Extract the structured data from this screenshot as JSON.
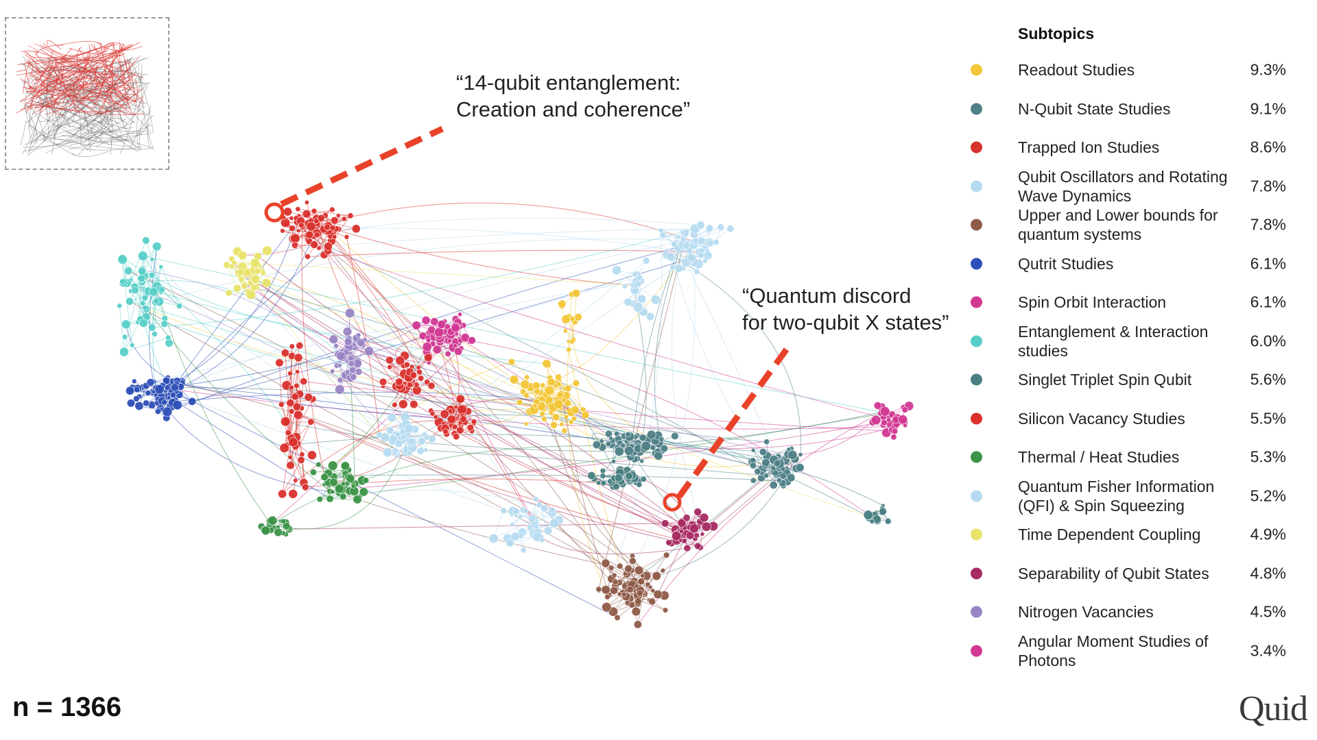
{
  "network": {
    "sample_size": "n = 1366"
  },
  "callouts": [
    {
      "line1": "“14-qubit entanglement:",
      "line2": "Creation and coherence”"
    },
    {
      "line1": "“Quantum discord",
      "line2": "for two-qubit X states”"
    }
  ],
  "legend": {
    "title": "Subtopics",
    "items": [
      {
        "label": "Readout Studies",
        "value": "9.3%",
        "color": "#f2c637"
      },
      {
        "label": "N-Qubit State Studies",
        "value": "9.1%",
        "color": "#4e8086"
      },
      {
        "label": "Trapped Ion Studies",
        "value": "8.6%",
        "color": "#d9322d"
      },
      {
        "label": "Qubit Oscillators and Rotating Wave Dynamics",
        "value": "7.8%",
        "color": "#b6dbf0"
      },
      {
        "label": "Upper and Lower bounds for quantum systems",
        "value": "7.8%",
        "color": "#8e5b48"
      },
      {
        "label": "Qutrit Studies",
        "value": "6.1%",
        "color": "#2d4fb6"
      },
      {
        "label": "Spin Orbit Interaction",
        "value": "6.1%",
        "color": "#d13892"
      },
      {
        "label": "Entanglement & Interaction studies",
        "value": "6.0%",
        "color": "#57cfc8"
      },
      {
        "label": "Singlet Triplet Spin Qubit",
        "value": "5.6%",
        "color": "#4a7f82"
      },
      {
        "label": "Silicon Vacancy Studies",
        "value": "5.5%",
        "color": "#d9322d"
      },
      {
        "label": "Thermal / Heat Studies",
        "value": "5.3%",
        "color": "#3b9447"
      },
      {
        "label": "Quantum Fisher Information (QFI) & Spin Squeezing",
        "value": "5.2%",
        "color": "#b6dbf0"
      },
      {
        "label": "Time Dependent Coupling",
        "value": "4.9%",
        "color": "#e8e36a"
      },
      {
        "label": "Separability of Qubit States",
        "value": "4.8%",
        "color": "#a72a62"
      },
      {
        "label": "Nitrogen Vacancies",
        "value": "4.5%",
        "color": "#9985c4"
      },
      {
        "label": "Angular Moment Studies of Photons",
        "value": "3.4%",
        "color": "#d13892"
      }
    ]
  },
  "brand": {
    "logo_text": "Quid"
  }
}
